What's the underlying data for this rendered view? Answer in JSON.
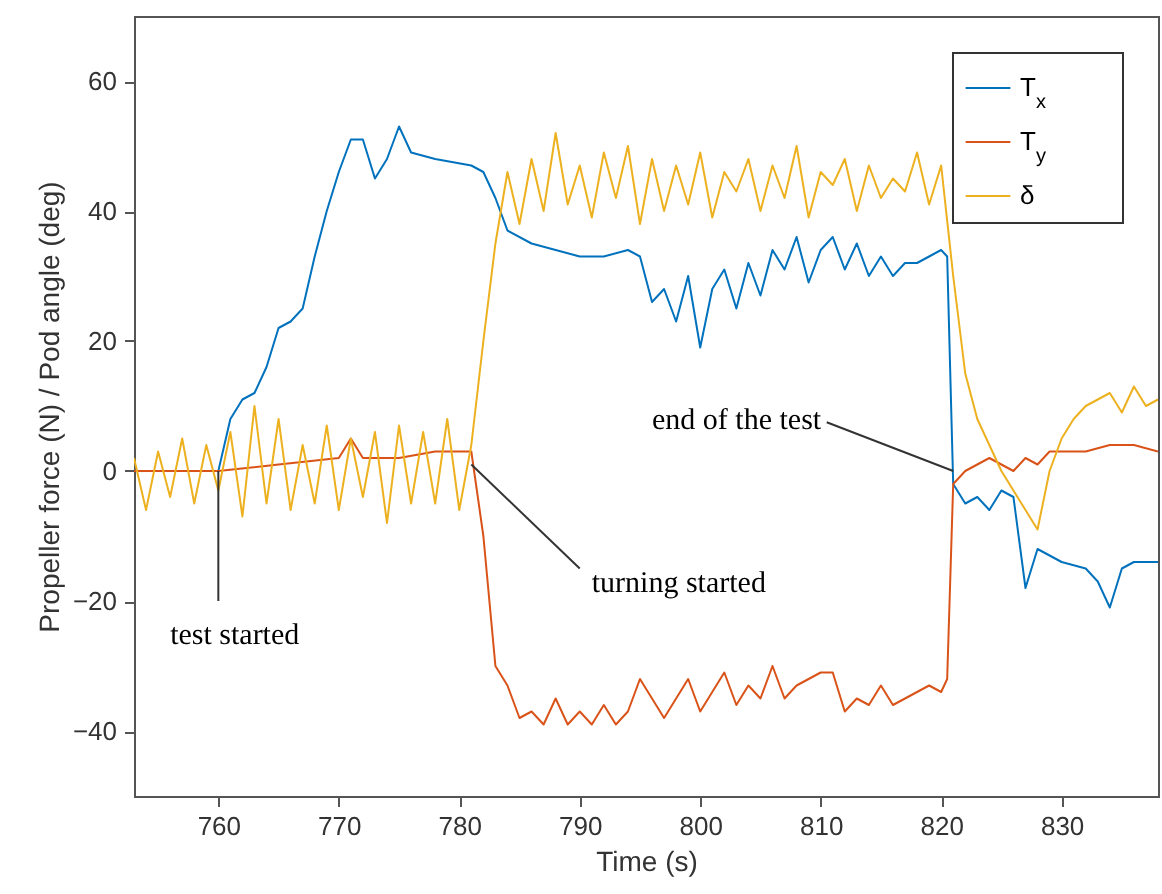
{
  "chart_data": {
    "type": "line",
    "xlabel": "Time (s)",
    "ylabel": "Propeller force (N) / Pod angle (deg)",
    "xlim": [
      753,
      838
    ],
    "ylim": [
      -50,
      70
    ],
    "xticks": [
      760,
      770,
      780,
      790,
      800,
      810,
      820,
      830
    ],
    "yticks": [
      -40,
      -20,
      0,
      20,
      40,
      60
    ],
    "grid": false,
    "legend": "top right",
    "line_style": "solid",
    "marker": "none",
    "annotations": [
      {
        "text": "test started",
        "x": 760,
        "y": 0
      },
      {
        "text": "turning started",
        "x": 781,
        "y": 1
      },
      {
        "text": "end of the test",
        "x": 821,
        "y": 0
      }
    ],
    "series": [
      {
        "name": "T$_{x}$",
        "color": "#0072bd",
        "x": [
          753,
          756,
          760,
          761,
          762,
          763,
          764,
          765,
          766,
          767,
          768,
          769,
          770,
          771,
          772,
          773,
          774,
          775,
          776,
          778,
          781,
          782,
          783,
          784,
          786,
          788,
          790,
          792,
          794,
          795,
          796,
          797,
          798,
          799,
          800,
          801,
          802,
          803,
          804,
          805,
          806,
          807,
          808,
          809,
          810,
          811,
          812,
          813,
          814,
          815,
          816,
          817,
          818,
          819,
          820,
          820.5,
          821,
          822,
          823,
          824,
          825,
          826,
          827,
          828,
          829,
          830,
          832,
          833,
          834,
          835,
          836,
          838
        ],
        "values": [
          0,
          0,
          0,
          8,
          11,
          12,
          16,
          22,
          23,
          25,
          33,
          40,
          46,
          51,
          51,
          45,
          48,
          53,
          49,
          48,
          47,
          46,
          42,
          37,
          35,
          34,
          33,
          33,
          34,
          33,
          26,
          28,
          23,
          30,
          19,
          28,
          31,
          25,
          32,
          27,
          34,
          31,
          36,
          29,
          34,
          36,
          31,
          35,
          30,
          33,
          30,
          32,
          32,
          33,
          34,
          33,
          -2,
          -5,
          -4,
          -6,
          -3,
          -4,
          -18,
          -12,
          -13,
          -14,
          -15,
          -17,
          -21,
          -15,
          -14,
          -14
        ]
      },
      {
        "name": "T$_{y}$",
        "color": "#d95319",
        "x": [
          753,
          760,
          765,
          770,
          771,
          772,
          775,
          778,
          781,
          782,
          783,
          784,
          785,
          786,
          787,
          788,
          789,
          790,
          791,
          792,
          793,
          794,
          795,
          796,
          797,
          798,
          799,
          800,
          801,
          802,
          803,
          804,
          805,
          806,
          807,
          808,
          809,
          810,
          811,
          812,
          813,
          814,
          815,
          816,
          817,
          818,
          819,
          820,
          820.5,
          821,
          822,
          823,
          824,
          825,
          826,
          827,
          828,
          829,
          830,
          832,
          834,
          836,
          838
        ],
        "values": [
          0,
          0,
          1,
          2,
          5,
          2,
          2,
          3,
          3,
          -10,
          -30,
          -33,
          -38,
          -37,
          -39,
          -35,
          -39,
          -37,
          -39,
          -36,
          -39,
          -37,
          -32,
          -35,
          -38,
          -35,
          -32,
          -37,
          -34,
          -31,
          -36,
          -33,
          -35,
          -30,
          -35,
          -33,
          -32,
          -31,
          -31,
          -37,
          -35,
          -36,
          -33,
          -36,
          -35,
          -34,
          -33,
          -34,
          -32,
          -2,
          0,
          1,
          2,
          1,
          0,
          2,
          1,
          3,
          3,
          3,
          4,
          4,
          3
        ]
      },
      {
        "name": "δ",
        "color": "#edb120",
        "x": [
          753,
          754,
          755,
          756,
          757,
          758,
          759,
          760,
          761,
          762,
          763,
          764,
          765,
          766,
          767,
          768,
          769,
          770,
          771,
          772,
          773,
          774,
          775,
          776,
          777,
          778,
          779,
          780,
          781,
          782,
          783,
          784,
          785,
          786,
          787,
          788,
          789,
          790,
          791,
          792,
          793,
          794,
          795,
          796,
          797,
          798,
          799,
          800,
          801,
          802,
          803,
          804,
          805,
          806,
          807,
          808,
          809,
          810,
          811,
          812,
          813,
          814,
          815,
          816,
          817,
          818,
          819,
          820,
          821,
          822,
          823,
          824,
          825,
          826,
          827,
          828,
          829,
          830,
          831,
          832,
          833,
          834,
          835,
          836,
          837,
          838
        ],
        "values": [
          2,
          -6,
          3,
          -4,
          5,
          -5,
          4,
          -3,
          6,
          -7,
          10,
          -5,
          8,
          -6,
          4,
          -5,
          7,
          -6,
          5,
          -4,
          6,
          -8,
          7,
          -5,
          6,
          -5,
          8,
          -6,
          4,
          20,
          35,
          46,
          38,
          48,
          40,
          52,
          41,
          47,
          39,
          49,
          42,
          50,
          38,
          48,
          40,
          47,
          41,
          49,
          39,
          46,
          43,
          48,
          40,
          47,
          42,
          50,
          39,
          46,
          44,
          48,
          40,
          47,
          42,
          45,
          43,
          49,
          41,
          47,
          30,
          15,
          8,
          4,
          0,
          -3,
          -6,
          -9,
          0,
          5,
          8,
          10,
          11,
          12,
          9,
          13,
          10,
          11
        ]
      }
    ]
  }
}
